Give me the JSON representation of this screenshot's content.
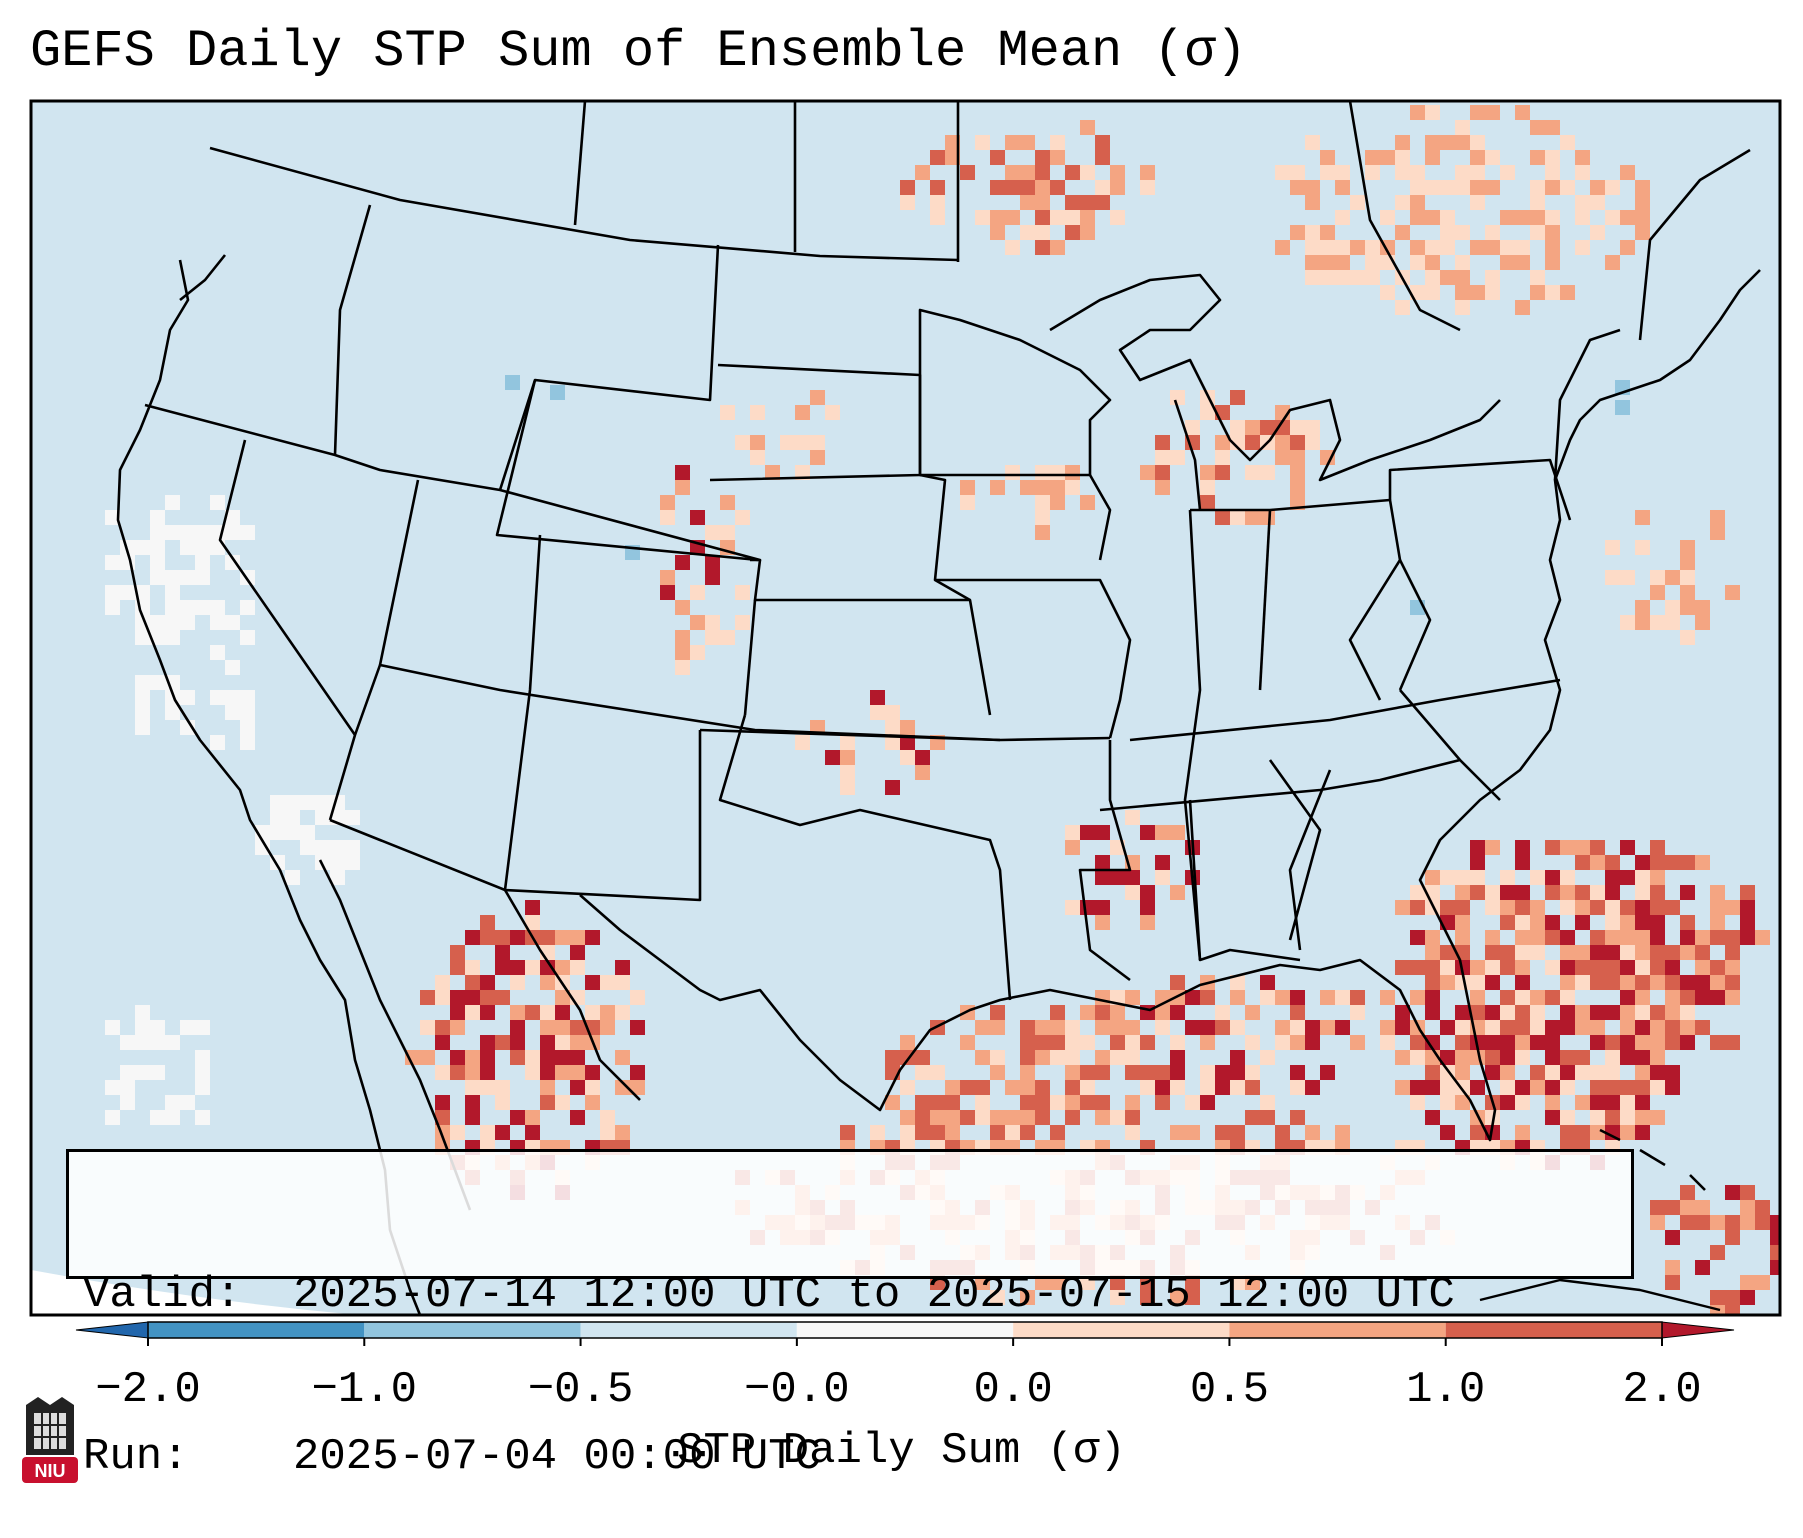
{
  "title": "GEFS Daily STP Sum of Ensemble Mean (σ)",
  "info": {
    "valid_label": "Valid:",
    "valid_value": "2025-07-14 12:00 UTC to 2025-07-15 12:00 UTC",
    "run_label": "Run:",
    "run_value": "2025-07-04 00:00 UTC"
  },
  "colorbar": {
    "label": "STP Daily Sum (σ)",
    "ticks": [
      "−2.0",
      "−1.0",
      "−0.5",
      "−0.0",
      "0.0",
      "0.5",
      "1.0",
      "2.0"
    ],
    "bins": [
      {
        "range": "< -2.0",
        "color": "#2166ac"
      },
      {
        "range": "-2.0 to -1.0",
        "color": "#4393c3"
      },
      {
        "range": "-1.0 to -0.5",
        "color": "#92c5de"
      },
      {
        "range": "-0.5 to -0.0",
        "color": "#d1e5f0"
      },
      {
        "range": "-0.0 to 0.0",
        "color": "#f7f7f7"
      },
      {
        "range": "0.0 to 0.5",
        "color": "#fddbc7"
      },
      {
        "range": "0.5 to 1.0",
        "color": "#f4a582"
      },
      {
        "range": "1.0 to 2.0",
        "color": "#d6604d"
      },
      {
        "range": "> 2.0",
        "color": "#b2182b"
      }
    ]
  },
  "logo": {
    "text": "NIU",
    "color": "#c8102e"
  },
  "map": {
    "background_color": "#d1e5f0",
    "region": "CONUS / North America",
    "anomaly_regions": [
      {
        "name": "Southeast coast and western Atlantic",
        "category": "1.0 to 2.0"
      },
      {
        "name": "Florida",
        "category": "1.0 to 2.0"
      },
      {
        "name": "Gulf of Mexico",
        "category": "0.5 to 1.0"
      },
      {
        "name": "Northern Mexico",
        "category": "1.0 to 2.0"
      },
      {
        "name": "Colorado-Wyoming front range",
        "category": "0.5 to 1.0"
      },
      {
        "name": "Michigan",
        "category": "0.5 to 1.0"
      },
      {
        "name": "Ontario and Quebec",
        "category": "0.0 to 0.5"
      },
      {
        "name": "Upper Midwest",
        "category": "0.0 to 0.5"
      }
    ]
  }
}
